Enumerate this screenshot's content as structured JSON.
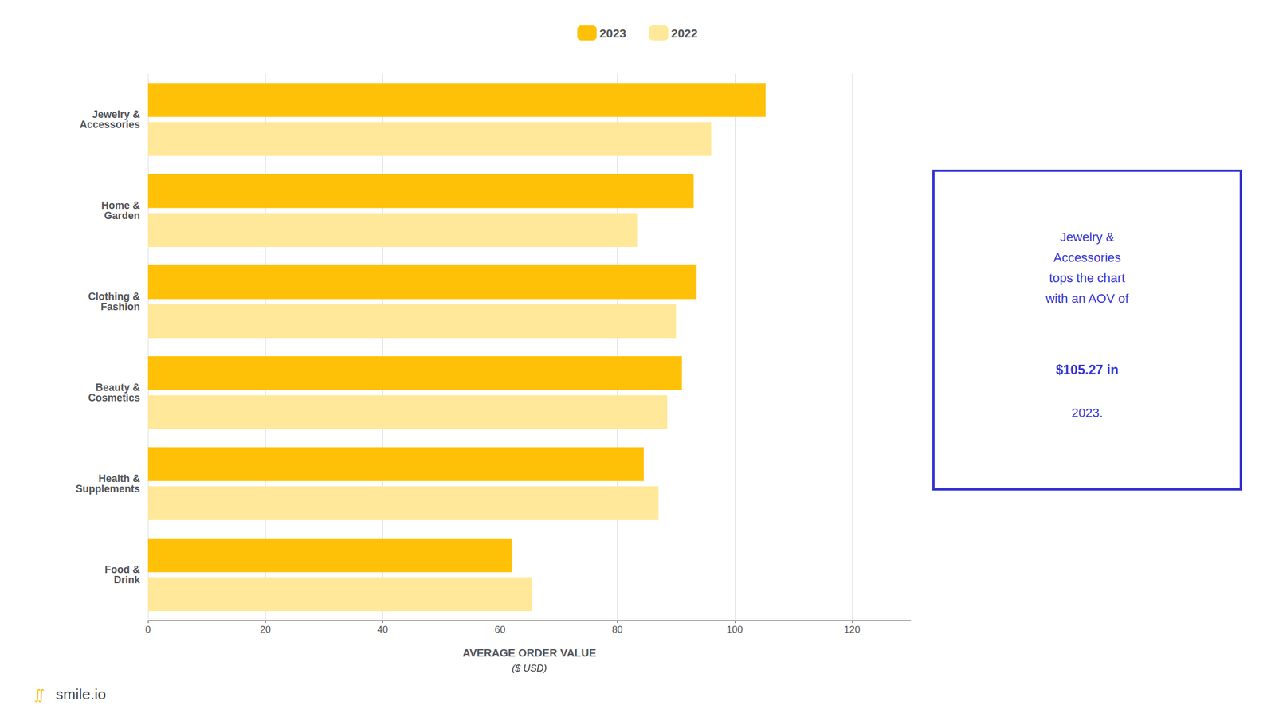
{
  "chart_data": {
    "type": "bar",
    "orientation": "horizontal",
    "categories": [
      "Jewelry &\nAccessories",
      "Home &\nGarden",
      "Clothing &\nFashion",
      "Beauty &\nCosmetics",
      "Health &\nSupplements",
      "Food &\nDrink"
    ],
    "series": [
      {
        "name": "2023",
        "color": "#FFC107",
        "values": [
          105.27,
          93.0,
          93.5,
          91.0,
          84.5,
          62.0
        ]
      },
      {
        "name": "2022",
        "color": "#FFE899",
        "values": [
          96.0,
          83.5,
          90.0,
          88.5,
          87.0,
          65.5
        ]
      }
    ],
    "xlabel": "AVERAGE ORDER VALUE",
    "xlabel_sub": "($ USD)",
    "xlim": [
      0,
      130
    ],
    "xticks": [
      0,
      20,
      40,
      60,
      80,
      100,
      120
    ],
    "grid": true,
    "legend": "top",
    "callout": {
      "lines": [
        "Jewelry &\nAccessories\ntops the chart\nwith an AOV of",
        "$105.27 in",
        "2023."
      ],
      "color": "#3535D4"
    },
    "logo": [
      {
        "text": "∬",
        "color": "#FFC107"
      },
      {
        "text": "smile.io",
        "color": "#444444"
      }
    ]
  }
}
